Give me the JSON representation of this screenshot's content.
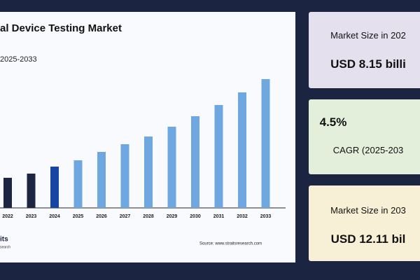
{
  "chart_data": {
    "type": "bar",
    "title": "al Device Testing Market",
    "subtitle": "2025-2033",
    "categories": [
      "2022",
      "2023",
      "2024",
      "2025",
      "2026",
      "2027",
      "2028",
      "2029",
      "2030",
      "2031",
      "2032",
      "2033"
    ],
    "values": [
      43,
      49,
      59,
      68,
      80,
      91,
      102,
      116,
      131,
      147,
      165,
      184
    ],
    "colors": [
      "#1c2541",
      "#1c2541",
      "#1746a2",
      "#6fa8e0",
      "#6fa8e0",
      "#6fa8e0",
      "#6fa8e0",
      "#6fa8e0",
      "#6fa8e0",
      "#6fa8e0",
      "#6fa8e0",
      "#6fa8e0"
    ],
    "ylim": [
      0,
      200
    ],
    "source": "Source: www.straitsresearch.com",
    "logo": [
      "its",
      "search"
    ]
  },
  "cards": [
    {
      "label": "Market Size in 202",
      "value": "USD 8.15 billi"
    },
    {
      "value": "4.5%",
      "label": "CAGR (2025-203"
    },
    {
      "label": "Market Size in 203",
      "value": "USD 12.11 bil"
    }
  ]
}
